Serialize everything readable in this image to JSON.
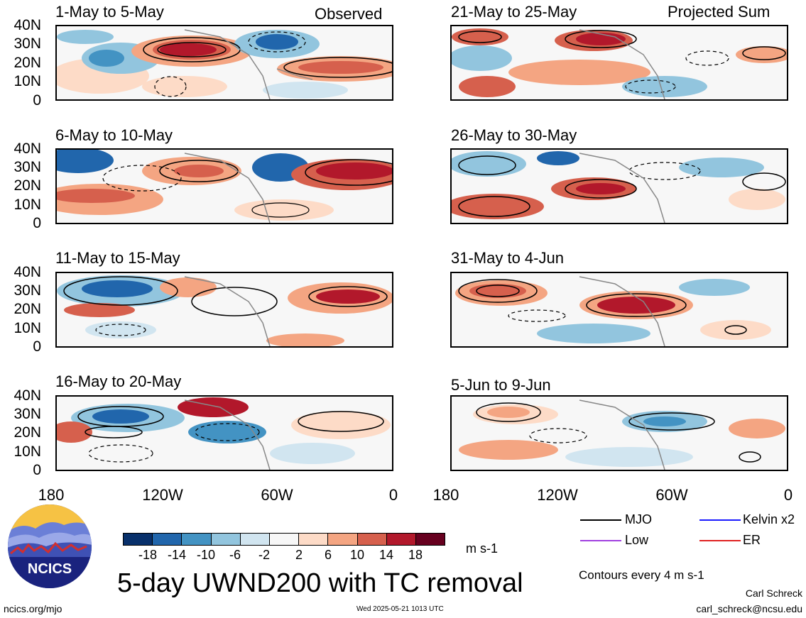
{
  "header": {
    "observed_label": "Observed",
    "projected_label": "Projected Sum"
  },
  "panels_left": [
    {
      "title": "1-May to 5-May"
    },
    {
      "title": "6-May to 10-May"
    },
    {
      "title": "11-May to 15-May"
    },
    {
      "title": "16-May to 20-May"
    }
  ],
  "panels_right": [
    {
      "title": "21-May to 25-May"
    },
    {
      "title": "26-May to 30-May"
    },
    {
      "title": "31-May to 4-Jun"
    },
    {
      "title": "5-Jun to 9-Jun"
    }
  ],
  "y_axis_labels": [
    "40N",
    "30N",
    "20N",
    "10N",
    "0"
  ],
  "x_axis_labels": [
    "180",
    "120W",
    "60W",
    "0"
  ],
  "colorbar": {
    "ticks": [
      "-18",
      "-14",
      "-10",
      "-6",
      "-2",
      "2",
      "6",
      "10",
      "14",
      "18"
    ],
    "colors": [
      "#08306b",
      "#2166ac",
      "#4393c3",
      "#92c5de",
      "#d1e5f0",
      "#f7f7f7",
      "#fddbc7",
      "#f4a582",
      "#d6604d",
      "#b2182b",
      "#67001f"
    ],
    "units": "m s-1"
  },
  "legend": {
    "items": [
      {
        "label": "MJO",
        "color": "#000000"
      },
      {
        "label": "Kelvin x2",
        "color": "#1a1aff"
      },
      {
        "label": "Low",
        "color": "#a040e0"
      },
      {
        "label": "ER",
        "color": "#e02020"
      }
    ],
    "contour_note": "Contours every 4 m s-1"
  },
  "title": "5-day UWND200 with TC removal",
  "logo_text": "NCICS",
  "footer": {
    "url": "ncics.org/mjo",
    "timestamp": "Wed 2025-05-21 1013 UTC",
    "author": "Carl Schreck",
    "email": "carl_schreck@ncsu.edu"
  }
}
